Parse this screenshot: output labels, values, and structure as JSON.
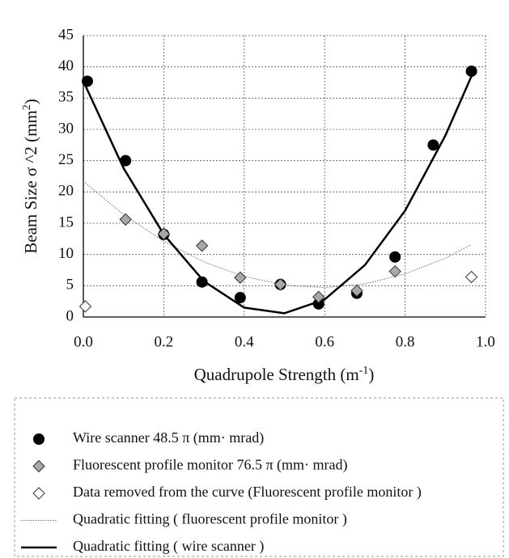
{
  "chart_data": {
    "type": "scatter",
    "xlabel": [
      "Quadrupole Strength (m",
      "-1",
      ")"
    ],
    "ylabel": [
      "Beam Size σ ^2 (mm",
      "2",
      ")"
    ],
    "xlim": [
      0,
      1
    ],
    "ylim": [
      0,
      45
    ],
    "xticks": [
      {
        "value": 0,
        "label": "0.0"
      },
      {
        "value": 0.2,
        "label": "0.2"
      },
      {
        "value": 0.4,
        "label": "0.4"
      },
      {
        "value": 0.6,
        "label": "0.6"
      },
      {
        "value": 0.8,
        "label": "0.8"
      },
      {
        "value": 1,
        "label": "1.0"
      }
    ],
    "yticks": [
      0,
      5,
      10,
      15,
      20,
      25,
      30,
      35,
      40,
      45
    ],
    "grid": true,
    "series": [
      {
        "name": "Wire scanner  48.5  π (mm· mrad)",
        "marker": "circle",
        "color": "#000000",
        "x": [
          0.01,
          0.105,
          0.2,
          0.295,
          0.39,
          0.49,
          0.585,
          0.68,
          0.775,
          0.87,
          0.965
        ],
        "values": [
          37.7,
          25,
          13.2,
          5.6,
          3.1,
          5.2,
          2.1,
          3.8,
          9.6,
          27.5,
          39.3
        ]
      },
      {
        "name": "Fluorescent profile monitor  76.5  π (mm· mrad)",
        "marker": "diamond",
        "color": "#a8a8a8",
        "x": [
          0.105,
          0.2,
          0.295,
          0.39,
          0.49,
          0.585,
          0.68,
          0.775
        ],
        "values": [
          15.6,
          13.3,
          11.4,
          6.3,
          5.2,
          3.2,
          4.2,
          7.3
        ]
      },
      {
        "name": " Data removed from the curve (Fluorescent profile monitor )",
        "marker": "diamond",
        "color": "#ffffff",
        "x": [
          0.005,
          0.965
        ],
        "values": [
          1.7,
          6.4
        ]
      },
      {
        "name": "Quadratic fitting  ( fluorescent profile monitor )",
        "marker": "line",
        "style": "dotted",
        "color": "#777777",
        "x": [
          0,
          0.1,
          0.2,
          0.3,
          0.4,
          0.5,
          0.6,
          0.7,
          0.8,
          0.9,
          0.965
        ],
        "values": [
          21.7,
          16.4,
          12.1,
          8.8,
          6.5,
          5.1,
          4.7,
          5.3,
          6.9,
          9.4,
          11.6
        ]
      },
      {
        "name": "Quadratic fitting ( wire scanner )",
        "marker": "line",
        "style": "solid",
        "color": "#000000",
        "x": [
          0,
          0.1,
          0.2,
          0.3,
          0.4,
          0.5,
          0.6,
          0.7,
          0.8,
          0.9,
          0.965
        ],
        "values": [
          37.7,
          23.8,
          13.2,
          5.7,
          1.5,
          0.6,
          2.8,
          8.3,
          17.0,
          29.0,
          38.5
        ]
      }
    ]
  }
}
